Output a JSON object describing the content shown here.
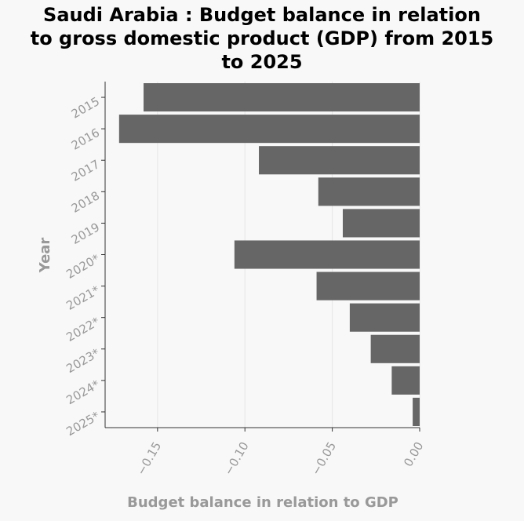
{
  "title_lines": [
    "Saudi Arabia : Budget balance in relation",
    "to gross domestic product (GDP) from 2015",
    "to 2025"
  ],
  "colors": {
    "bar": "#666666",
    "grid": "#e6e6e6",
    "axis_text": "#999999",
    "background": "#f8f8f8"
  },
  "chart_data": {
    "type": "bar",
    "orientation": "horizontal",
    "title": "Saudi Arabia : Budget balance in relation to gross domestic product (GDP) from 2015 to 2025",
    "xlabel": "Budget balance in relation to GDP",
    "ylabel": "Year",
    "categories": [
      "2015",
      "2016",
      "2017",
      "2018",
      "2019",
      "2020*",
      "2021*",
      "2022*",
      "2023*",
      "2024*",
      "2025*"
    ],
    "values": [
      -0.158,
      -0.172,
      -0.092,
      -0.058,
      -0.044,
      -0.106,
      -0.059,
      -0.04,
      -0.028,
      -0.016,
      -0.004
    ],
    "xlim": [
      -0.18,
      0.0
    ],
    "xticks": [
      -0.15,
      -0.1,
      -0.05,
      0.0
    ],
    "xtick_labels": [
      "−0.15",
      "−0.10",
      "−0.05",
      "0.00"
    ],
    "grid": "vertical"
  }
}
